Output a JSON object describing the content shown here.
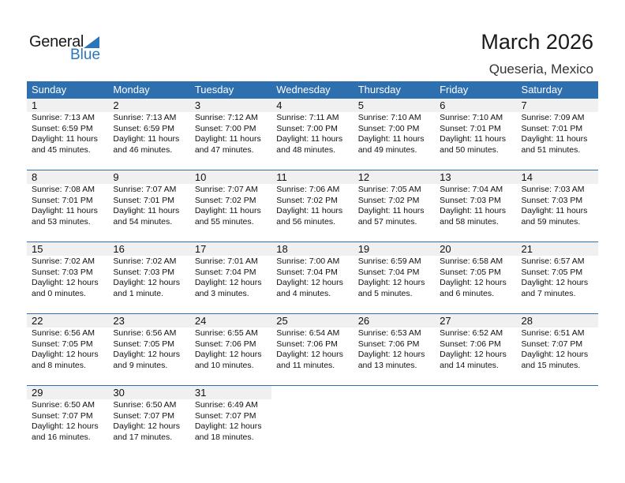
{
  "logo": {
    "line1": "General",
    "line2": "Blue"
  },
  "title": "March 2026",
  "location": "Queseria, Mexico",
  "weekdays": [
    "Sunday",
    "Monday",
    "Tuesday",
    "Wednesday",
    "Thursday",
    "Friday",
    "Saturday"
  ],
  "weeks": [
    [
      {
        "day": "1",
        "sunrise": "Sunrise: 7:13 AM",
        "sunset": "Sunset: 6:59 PM",
        "daylight1": "Daylight: 11 hours",
        "daylight2": "and 45 minutes."
      },
      {
        "day": "2",
        "sunrise": "Sunrise: 7:13 AM",
        "sunset": "Sunset: 6:59 PM",
        "daylight1": "Daylight: 11 hours",
        "daylight2": "and 46 minutes."
      },
      {
        "day": "3",
        "sunrise": "Sunrise: 7:12 AM",
        "sunset": "Sunset: 7:00 PM",
        "daylight1": "Daylight: 11 hours",
        "daylight2": "and 47 minutes."
      },
      {
        "day": "4",
        "sunrise": "Sunrise: 7:11 AM",
        "sunset": "Sunset: 7:00 PM",
        "daylight1": "Daylight: 11 hours",
        "daylight2": "and 48 minutes."
      },
      {
        "day": "5",
        "sunrise": "Sunrise: 7:10 AM",
        "sunset": "Sunset: 7:00 PM",
        "daylight1": "Daylight: 11 hours",
        "daylight2": "and 49 minutes."
      },
      {
        "day": "6",
        "sunrise": "Sunrise: 7:10 AM",
        "sunset": "Sunset: 7:01 PM",
        "daylight1": "Daylight: 11 hours",
        "daylight2": "and 50 minutes."
      },
      {
        "day": "7",
        "sunrise": "Sunrise: 7:09 AM",
        "sunset": "Sunset: 7:01 PM",
        "daylight1": "Daylight: 11 hours",
        "daylight2": "and 51 minutes."
      }
    ],
    [
      {
        "day": "8",
        "sunrise": "Sunrise: 7:08 AM",
        "sunset": "Sunset: 7:01 PM",
        "daylight1": "Daylight: 11 hours",
        "daylight2": "and 53 minutes."
      },
      {
        "day": "9",
        "sunrise": "Sunrise: 7:07 AM",
        "sunset": "Sunset: 7:01 PM",
        "daylight1": "Daylight: 11 hours",
        "daylight2": "and 54 minutes."
      },
      {
        "day": "10",
        "sunrise": "Sunrise: 7:07 AM",
        "sunset": "Sunset: 7:02 PM",
        "daylight1": "Daylight: 11 hours",
        "daylight2": "and 55 minutes."
      },
      {
        "day": "11",
        "sunrise": "Sunrise: 7:06 AM",
        "sunset": "Sunset: 7:02 PM",
        "daylight1": "Daylight: 11 hours",
        "daylight2": "and 56 minutes."
      },
      {
        "day": "12",
        "sunrise": "Sunrise: 7:05 AM",
        "sunset": "Sunset: 7:02 PM",
        "daylight1": "Daylight: 11 hours",
        "daylight2": "and 57 minutes."
      },
      {
        "day": "13",
        "sunrise": "Sunrise: 7:04 AM",
        "sunset": "Sunset: 7:03 PM",
        "daylight1": "Daylight: 11 hours",
        "daylight2": "and 58 minutes."
      },
      {
        "day": "14",
        "sunrise": "Sunrise: 7:03 AM",
        "sunset": "Sunset: 7:03 PM",
        "daylight1": "Daylight: 11 hours",
        "daylight2": "and 59 minutes."
      }
    ],
    [
      {
        "day": "15",
        "sunrise": "Sunrise: 7:02 AM",
        "sunset": "Sunset: 7:03 PM",
        "daylight1": "Daylight: 12 hours",
        "daylight2": "and 0 minutes."
      },
      {
        "day": "16",
        "sunrise": "Sunrise: 7:02 AM",
        "sunset": "Sunset: 7:03 PM",
        "daylight1": "Daylight: 12 hours",
        "daylight2": "and 1 minute."
      },
      {
        "day": "17",
        "sunrise": "Sunrise: 7:01 AM",
        "sunset": "Sunset: 7:04 PM",
        "daylight1": "Daylight: 12 hours",
        "daylight2": "and 3 minutes."
      },
      {
        "day": "18",
        "sunrise": "Sunrise: 7:00 AM",
        "sunset": "Sunset: 7:04 PM",
        "daylight1": "Daylight: 12 hours",
        "daylight2": "and 4 minutes."
      },
      {
        "day": "19",
        "sunrise": "Sunrise: 6:59 AM",
        "sunset": "Sunset: 7:04 PM",
        "daylight1": "Daylight: 12 hours",
        "daylight2": "and 5 minutes."
      },
      {
        "day": "20",
        "sunrise": "Sunrise: 6:58 AM",
        "sunset": "Sunset: 7:05 PM",
        "daylight1": "Daylight: 12 hours",
        "daylight2": "and 6 minutes."
      },
      {
        "day": "21",
        "sunrise": "Sunrise: 6:57 AM",
        "sunset": "Sunset: 7:05 PM",
        "daylight1": "Daylight: 12 hours",
        "daylight2": "and 7 minutes."
      }
    ],
    [
      {
        "day": "22",
        "sunrise": "Sunrise: 6:56 AM",
        "sunset": "Sunset: 7:05 PM",
        "daylight1": "Daylight: 12 hours",
        "daylight2": "and 8 minutes."
      },
      {
        "day": "23",
        "sunrise": "Sunrise: 6:56 AM",
        "sunset": "Sunset: 7:05 PM",
        "daylight1": "Daylight: 12 hours",
        "daylight2": "and 9 minutes."
      },
      {
        "day": "24",
        "sunrise": "Sunrise: 6:55 AM",
        "sunset": "Sunset: 7:06 PM",
        "daylight1": "Daylight: 12 hours",
        "daylight2": "and 10 minutes."
      },
      {
        "day": "25",
        "sunrise": "Sunrise: 6:54 AM",
        "sunset": "Sunset: 7:06 PM",
        "daylight1": "Daylight: 12 hours",
        "daylight2": "and 11 minutes."
      },
      {
        "day": "26",
        "sunrise": "Sunrise: 6:53 AM",
        "sunset": "Sunset: 7:06 PM",
        "daylight1": "Daylight: 12 hours",
        "daylight2": "and 13 minutes."
      },
      {
        "day": "27",
        "sunrise": "Sunrise: 6:52 AM",
        "sunset": "Sunset: 7:06 PM",
        "daylight1": "Daylight: 12 hours",
        "daylight2": "and 14 minutes."
      },
      {
        "day": "28",
        "sunrise": "Sunrise: 6:51 AM",
        "sunset": "Sunset: 7:07 PM",
        "daylight1": "Daylight: 12 hours",
        "daylight2": "and 15 minutes."
      }
    ],
    [
      {
        "day": "29",
        "sunrise": "Sunrise: 6:50 AM",
        "sunset": "Sunset: 7:07 PM",
        "daylight1": "Daylight: 12 hours",
        "daylight2": "and 16 minutes."
      },
      {
        "day": "30",
        "sunrise": "Sunrise: 6:50 AM",
        "sunset": "Sunset: 7:07 PM",
        "daylight1": "Daylight: 12 hours",
        "daylight2": "and 17 minutes."
      },
      {
        "day": "31",
        "sunrise": "Sunrise: 6:49 AM",
        "sunset": "Sunset: 7:07 PM",
        "daylight1": "Daylight: 12 hours",
        "daylight2": "and 18 minutes."
      },
      null,
      null,
      null,
      null
    ]
  ]
}
